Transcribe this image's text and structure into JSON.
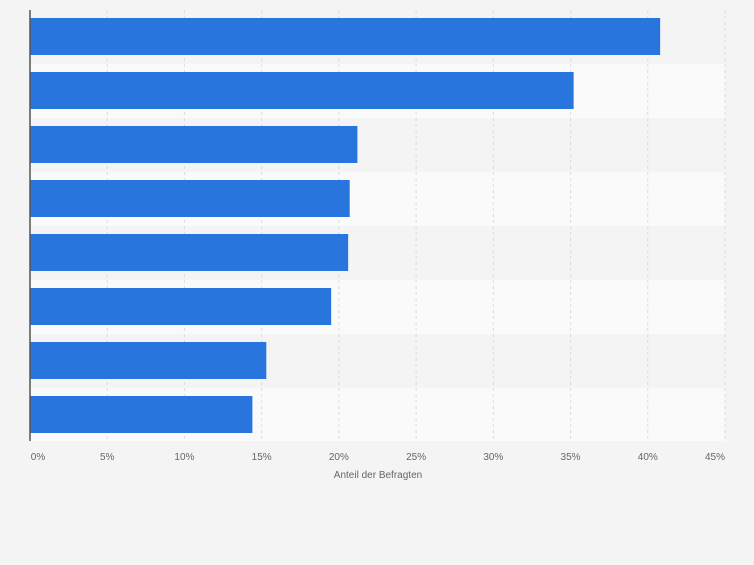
{
  "chart_data": {
    "type": "bar",
    "orientation": "horizontal",
    "categories": [
      "",
      "",
      "",
      "",
      "",
      "",
      "",
      ""
    ],
    "values": [
      40.8,
      35.2,
      21.2,
      20.7,
      20.6,
      19.5,
      15.3,
      14.4
    ],
    "xlabel": "Anteil der Befragten",
    "xlim": [
      0,
      45
    ],
    "x_ticks": [
      0,
      5,
      10,
      15,
      20,
      25,
      30,
      35,
      40,
      45
    ],
    "x_tick_labels": [
      "0%",
      "5%",
      "10%",
      "15%",
      "20%",
      "25%",
      "30%",
      "35%",
      "40%",
      "45%"
    ],
    "grid": true,
    "legend": "none"
  },
  "colors": {
    "bar": "#2876dd",
    "background": "#f4f4f4",
    "band_light": "#fafafa",
    "band_dark": "#f4f4f4",
    "grid": "#dcdcdc",
    "axis": "#555555"
  }
}
